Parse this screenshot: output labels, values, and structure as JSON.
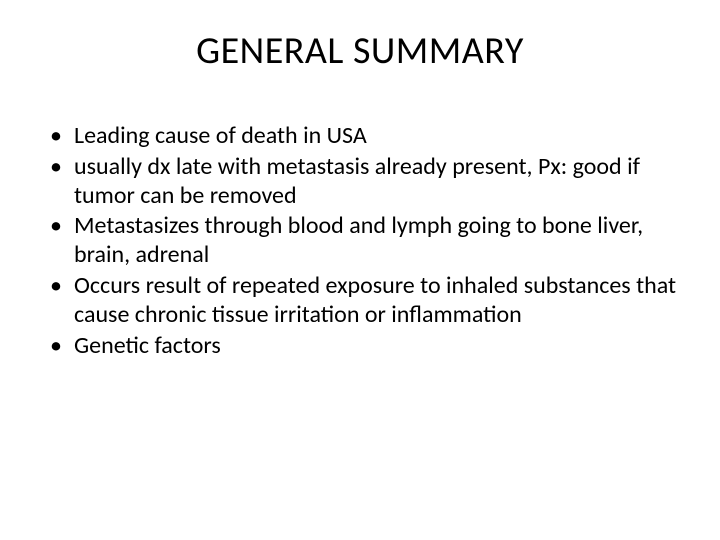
{
  "slide": {
    "title": "GENERAL SUMMARY",
    "bullets": [
      "Leading cause of death in USA",
      "usually dx late with metastasis already present, Px: good if tumor can be removed",
      "Metastasizes through blood and lymph going to bone liver, brain, adrenal",
      "Occurs result of repeated exposure to inhaled substances that cause chronic tissue irritation or inflammation",
      "Genetic factors"
    ]
  },
  "style": {
    "background_color": "#ffffff",
    "text_color": "#000000",
    "title_fontsize": 38,
    "bullet_fontsize": 24,
    "font_family": "Calibri"
  }
}
